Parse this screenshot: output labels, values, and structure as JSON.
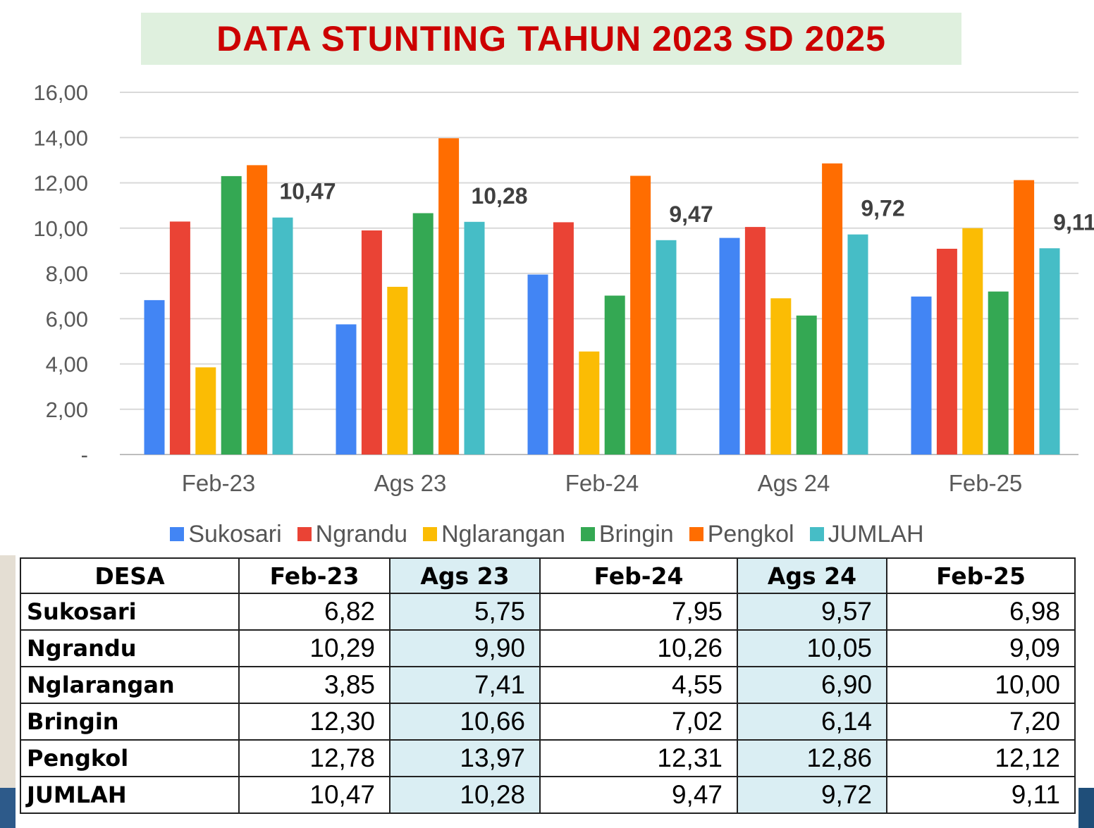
{
  "title": "DATA STUNTING TAHUN 2023 SD 2025",
  "chart_data": {
    "type": "bar",
    "title": "DATA STUNTING TAHUN 2023 SD 2025",
    "categories": [
      "Feb-23",
      "Ags 23",
      "Feb-24",
      "Ags 24",
      "Feb-25"
    ],
    "ylim": [
      0,
      16
    ],
    "yticks": [
      0,
      2,
      4,
      6,
      8,
      10,
      12,
      14,
      16
    ],
    "ytick_labels": [
      "-",
      "2,00",
      "4,00",
      "6,00",
      "8,00",
      "10,00",
      "12,00",
      "14,00",
      "16,00"
    ],
    "grid": true,
    "legend_position": "bottom",
    "series": [
      {
        "name": "Sukosari",
        "color": "#4285f4",
        "values": [
          6.82,
          5.75,
          7.95,
          9.57,
          6.98
        ]
      },
      {
        "name": "Ngrandu",
        "color": "#ea4335",
        "values": [
          10.29,
          9.9,
          10.26,
          10.05,
          9.09
        ]
      },
      {
        "name": "Nglarangan",
        "color": "#fbbc04",
        "values": [
          3.85,
          7.41,
          4.55,
          6.9,
          10.0
        ]
      },
      {
        "name": "Bringin",
        "color": "#34a853",
        "values": [
          12.3,
          10.66,
          7.02,
          6.14,
          7.2
        ]
      },
      {
        "name": "Pengkol",
        "color": "#ff6d01",
        "values": [
          12.78,
          13.97,
          12.31,
          12.86,
          12.12
        ]
      },
      {
        "name": "JUMLAH",
        "color": "#46bdc6",
        "values": [
          10.47,
          10.28,
          9.47,
          9.72,
          9.11
        ]
      }
    ],
    "data_labels": {
      "series": "JUMLAH",
      "labels": [
        "10,47",
        "10,28",
        "9,47",
        "9,72",
        "9,11"
      ]
    }
  },
  "table": {
    "headers": [
      "DESA",
      "Feb-23",
      "Ags 23",
      "Feb-24",
      "Ags 24",
      "Feb-25"
    ],
    "rows": [
      {
        "desa": "Sukosari",
        "values": [
          "6,82",
          "5,75",
          "7,95",
          "9,57",
          "6,98"
        ]
      },
      {
        "desa": "Ngrandu",
        "values": [
          "10,29",
          "9,90",
          "10,26",
          "10,05",
          "9,09"
        ]
      },
      {
        "desa": "Nglarangan",
        "values": [
          "3,85",
          "7,41",
          "4,55",
          "6,90",
          "10,00"
        ]
      },
      {
        "desa": "Bringin",
        "values": [
          "12,30",
          "10,66",
          "7,02",
          "6,14",
          "7,20"
        ]
      },
      {
        "desa": "Pengkol",
        "values": [
          "12,78",
          "13,97",
          "12,31",
          "12,86",
          "12,12"
        ]
      },
      {
        "desa": "JUMLAH",
        "values": [
          "10,47",
          "10,28",
          "9,47",
          "9,72",
          "9,11"
        ]
      }
    ]
  }
}
